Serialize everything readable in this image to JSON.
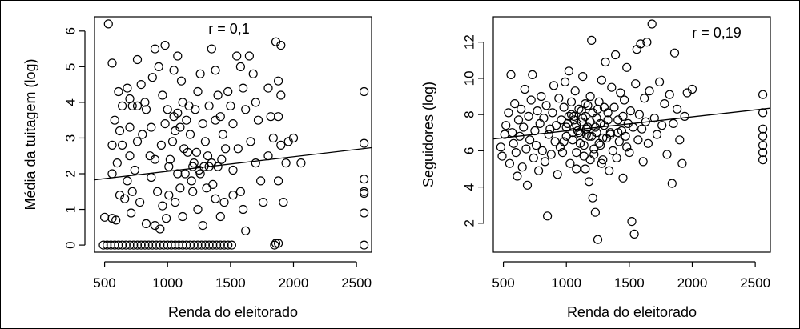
{
  "chart_data": [
    {
      "type": "scatter",
      "xlabel": "Renda do eleitorado",
      "ylabel": "Média da tuitagem (log)",
      "annotation": "r = 0,1",
      "xlim": [
        420,
        2620
      ],
      "ylim": [
        -0.2,
        6.4
      ],
      "xticks": [
        500,
        1000,
        1500,
        2000,
        2500
      ],
      "yticks": [
        0,
        1,
        2,
        3,
        4,
        5,
        6
      ],
      "regression": {
        "x": [
          420,
          2620
        ],
        "y": [
          1.83,
          2.73
        ]
      },
      "points": [
        [
          530,
          6.2
        ],
        [
          560,
          5.1
        ],
        [
          610,
          4.3
        ],
        [
          640,
          3.9
        ],
        [
          580,
          3.5
        ],
        [
          620,
          3.2
        ],
        [
          560,
          2.8
        ],
        [
          600,
          2.3
        ],
        [
          560,
          2.0
        ],
        [
          620,
          1.4
        ],
        [
          590,
          0.7
        ],
        [
          560,
          0.75
        ],
        [
          500,
          0.78
        ],
        [
          680,
          4.4
        ],
        [
          700,
          4.1
        ],
        [
          720,
          3.9
        ],
        [
          760,
          5.2
        ],
        [
          790,
          4.5
        ],
        [
          820,
          4.0
        ],
        [
          800,
          3.1
        ],
        [
          760,
          2.9
        ],
        [
          700,
          2.5
        ],
        [
          740,
          2.1
        ],
        [
          680,
          1.8
        ],
        [
          660,
          1.3
        ],
        [
          710,
          0.9
        ],
        [
          780,
          1.2
        ],
        [
          830,
          0.6
        ],
        [
          880,
          4.7
        ],
        [
          900,
          5.5
        ],
        [
          930,
          5.0
        ],
        [
          980,
          5.6
        ],
        [
          960,
          4.2
        ],
        [
          1000,
          3.8
        ],
        [
          980,
          3.4
        ],
        [
          950,
          2.8
        ],
        [
          900,
          2.4
        ],
        [
          870,
          1.9
        ],
        [
          920,
          1.5
        ],
        [
          960,
          1.1
        ],
        [
          900,
          0.55
        ],
        [
          940,
          0.45
        ],
        [
          990,
          0.75
        ],
        [
          1050,
          4.9
        ],
        [
          1080,
          5.3
        ],
        [
          1110,
          4.6
        ],
        [
          1120,
          4.0
        ],
        [
          1080,
          3.7
        ],
        [
          1060,
          3.2
        ],
        [
          1040,
          2.9
        ],
        [
          1020,
          2.4
        ],
        [
          1080,
          2.0
        ],
        [
          1100,
          1.6
        ],
        [
          1060,
          1.2
        ],
        [
          1120,
          0.8
        ],
        [
          1150,
          3.5
        ],
        [
          1180,
          3.1
        ],
        [
          1160,
          2.6
        ],
        [
          1200,
          2.2
        ],
        [
          1220,
          3.8
        ],
        [
          1240,
          4.3
        ],
        [
          1260,
          4.8
        ],
        [
          1280,
          3.4
        ],
        [
          1300,
          2.9
        ],
        [
          1320,
          2.5
        ],
        [
          1260,
          2.0
        ],
        [
          1200,
          1.5
        ],
        [
          1240,
          1.0
        ],
        [
          1280,
          0.55
        ],
        [
          1350,
          5.5
        ],
        [
          1380,
          4.9
        ],
        [
          1400,
          4.2
        ],
        [
          1420,
          3.6
        ],
        [
          1440,
          3.1
        ],
        [
          1460,
          2.7
        ],
        [
          1400,
          2.2
        ],
        [
          1360,
          1.7
        ],
        [
          1380,
          1.3
        ],
        [
          1420,
          0.8
        ],
        [
          1480,
          4.3
        ],
        [
          1500,
          3.9
        ],
        [
          1520,
          3.4
        ],
        [
          1550,
          5.3
        ],
        [
          1580,
          5.0
        ],
        [
          1600,
          4.4
        ],
        [
          1620,
          3.8
        ],
        [
          1560,
          2.7
        ],
        [
          1520,
          2.1
        ],
        [
          1580,
          1.5
        ],
        [
          1600,
          1.0
        ],
        [
          1620,
          0.4
        ],
        [
          1650,
          5.3
        ],
        [
          1680,
          4.8
        ],
        [
          1700,
          4.0
        ],
        [
          1720,
          3.5
        ],
        [
          1660,
          2.9
        ],
        [
          1700,
          2.3
        ],
        [
          1740,
          1.8
        ],
        [
          1760,
          1.2
        ],
        [
          1800,
          4.4
        ],
        [
          1820,
          3.6
        ],
        [
          1840,
          3.0
        ],
        [
          1800,
          2.5
        ],
        [
          1860,
          5.7
        ],
        [
          1900,
          5.6
        ],
        [
          1880,
          4.6
        ],
        [
          1900,
          4.2
        ],
        [
          1880,
          3.6
        ],
        [
          1900,
          2.8
        ],
        [
          1940,
          2.3
        ],
        [
          1880,
          1.8
        ],
        [
          1920,
          1.2
        ],
        [
          1960,
          2.9
        ],
        [
          2000,
          3.0
        ],
        [
          2060,
          2.3
        ],
        [
          1880,
          0.05
        ],
        [
          1860,
          0.05
        ],
        [
          1850,
          0.0
        ],
        [
          490,
          0
        ],
        [
          520,
          0
        ],
        [
          550,
          0
        ],
        [
          580,
          0
        ],
        [
          610,
          0
        ],
        [
          640,
          0
        ],
        [
          670,
          0
        ],
        [
          700,
          0
        ],
        [
          730,
          0
        ],
        [
          760,
          0
        ],
        [
          790,
          0
        ],
        [
          820,
          0
        ],
        [
          850,
          0
        ],
        [
          880,
          0
        ],
        [
          910,
          0
        ],
        [
          940,
          0
        ],
        [
          970,
          0
        ],
        [
          1000,
          0
        ],
        [
          1030,
          0
        ],
        [
          1060,
          0
        ],
        [
          1090,
          0
        ],
        [
          1120,
          0
        ],
        [
          1150,
          0
        ],
        [
          1180,
          0
        ],
        [
          1210,
          0
        ],
        [
          1240,
          0
        ],
        [
          1270,
          0
        ],
        [
          1300,
          0
        ],
        [
          1330,
          0
        ],
        [
          1360,
          0
        ],
        [
          1390,
          0
        ],
        [
          1420,
          0
        ],
        [
          1450,
          0
        ],
        [
          1480,
          0
        ],
        [
          1510,
          0
        ],
        [
          1100,
          3.3
        ],
        [
          1130,
          2.7
        ],
        [
          1170,
          3.9
        ],
        [
          1230,
          2.6
        ],
        [
          1290,
          2.2
        ],
        [
          1330,
          3.9
        ],
        [
          1350,
          2.3
        ],
        [
          1380,
          3.5
        ],
        [
          1210,
          2.3
        ],
        [
          1250,
          2.1
        ],
        [
          1140,
          2.0
        ],
        [
          1330,
          2.2
        ],
        [
          1190,
          1.8
        ],
        [
          1310,
          1.6
        ],
        [
          1430,
          2.4
        ],
        [
          1050,
          3.6
        ],
        [
          1010,
          2.2
        ],
        [
          830,
          3.8
        ],
        [
          870,
          3.3
        ],
        [
          760,
          3.9
        ],
        [
          700,
          3.3
        ],
        [
          640,
          2.8
        ],
        [
          720,
          1.5
        ],
        [
          860,
          2.5
        ],
        [
          1010,
          1.4
        ],
        [
          1450,
          1.2
        ],
        [
          1520,
          1.4
        ],
        [
          2560,
          4.3
        ],
        [
          2560,
          2.85
        ],
        [
          2560,
          1.85
        ],
        [
          2560,
          1.5
        ],
        [
          2560,
          1.45
        ],
        [
          2560,
          0.9
        ],
        [
          2560,
          0.0
        ]
      ]
    },
    {
      "type": "scatter",
      "xlabel": "Renda do eleitorado",
      "ylabel": "Seguidores (log)",
      "annotation": "r = 0,19",
      "xlim": [
        420,
        2620
      ],
      "ylim": [
        0.4,
        13.4
      ],
      "xticks": [
        500,
        1000,
        1500,
        2000,
        2500
      ],
      "yticks": [
        2,
        4,
        6,
        8,
        10,
        12
      ],
      "regression": {
        "x": [
          420,
          2620
        ],
        "y": [
          6.65,
          8.35
        ]
      },
      "points": [
        [
          480,
          6.2
        ],
        [
          490,
          5.7
        ],
        [
          510,
          6.9
        ],
        [
          520,
          7.4
        ],
        [
          540,
          8.1
        ],
        [
          550,
          5.3
        ],
        [
          560,
          10.2
        ],
        [
          570,
          7.0
        ],
        [
          580,
          6.4
        ],
        [
          590,
          8.6
        ],
        [
          600,
          5.9
        ],
        [
          610,
          4.6
        ],
        [
          620,
          7.7
        ],
        [
          630,
          6.8
        ],
        [
          640,
          8.3
        ],
        [
          650,
          5.1
        ],
        [
          660,
          7.3
        ],
        [
          670,
          9.4
        ],
        [
          680,
          6.1
        ],
        [
          690,
          4.1
        ],
        [
          700,
          7.9
        ],
        [
          710,
          6.6
        ],
        [
          720,
          8.8
        ],
        [
          730,
          10.2
        ],
        [
          740,
          5.6
        ],
        [
          750,
          7.1
        ],
        [
          760,
          6.3
        ],
        [
          770,
          8.2
        ],
        [
          780,
          4.9
        ],
        [
          790,
          7.5
        ],
        [
          800,
          9.0
        ],
        [
          810,
          6.0
        ],
        [
          820,
          7.8
        ],
        [
          830,
          5.4
        ],
        [
          840,
          8.5
        ],
        [
          850,
          2.4
        ],
        [
          860,
          6.9
        ],
        [
          870,
          7.2
        ],
        [
          880,
          5.8
        ],
        [
          890,
          8.1
        ],
        [
          900,
          9.6
        ],
        [
          910,
          6.5
        ],
        [
          920,
          7.4
        ],
        [
          930,
          4.7
        ],
        [
          940,
          8.9
        ],
        [
          950,
          6.2
        ],
        [
          960,
          7.7
        ],
        [
          970,
          5.9
        ],
        [
          980,
          8.4
        ],
        [
          990,
          9.8
        ],
        [
          1000,
          6.8
        ],
        [
          1010,
          7.5
        ],
        [
          1020,
          10.4
        ],
        [
          1030,
          5.3
        ],
        [
          1040,
          8.0
        ],
        [
          1050,
          6.6
        ],
        [
          1060,
          7.9
        ],
        [
          1070,
          9.3
        ],
        [
          1080,
          5.0
        ],
        [
          1090,
          7.1
        ],
        [
          1100,
          8.3
        ],
        [
          1110,
          6.4
        ],
        [
          1120,
          7.6
        ],
        [
          1130,
          10.1
        ],
        [
          1140,
          5.7
        ],
        [
          1150,
          8.6
        ],
        [
          1160,
          6.9
        ],
        [
          1170,
          7.3
        ],
        [
          1180,
          4.3
        ],
        [
          1190,
          9.0
        ],
        [
          1200,
          12.1
        ],
        [
          1210,
          3.4
        ],
        [
          1220,
          6.1
        ],
        [
          1230,
          2.6
        ],
        [
          1240,
          7.8
        ],
        [
          1250,
          1.1
        ],
        [
          1260,
          8.7
        ],
        [
          1270,
          6.3
        ],
        [
          1280,
          9.9
        ],
        [
          1290,
          5.5
        ],
        [
          1300,
          7.4
        ],
        [
          1310,
          10.9
        ],
        [
          1320,
          6.7
        ],
        [
          1330,
          8.1
        ],
        [
          1340,
          4.9
        ],
        [
          1350,
          7.0
        ],
        [
          1360,
          9.5
        ],
        [
          1370,
          6.0
        ],
        [
          1380,
          8.4
        ],
        [
          1390,
          11.3
        ],
        [
          1400,
          5.6
        ],
        [
          1410,
          7.7
        ],
        [
          1420,
          6.5
        ],
        [
          1430,
          9.2
        ],
        [
          1440,
          7.1
        ],
        [
          1450,
          4.5
        ],
        [
          1460,
          8.8
        ],
        [
          1470,
          6.8
        ],
        [
          1480,
          10.6
        ],
        [
          1490,
          7.5
        ],
        [
          1500,
          5.9
        ],
        [
          1510,
          8.2
        ],
        [
          1520,
          2.1
        ],
        [
          1530,
          7.3
        ],
        [
          1540,
          1.4
        ],
        [
          1550,
          9.7
        ],
        [
          1560,
          11.6
        ],
        [
          1570,
          6.6
        ],
        [
          1580,
          8.0
        ],
        [
          1590,
          11.9
        ],
        [
          1600,
          7.2
        ],
        [
          1610,
          5.4
        ],
        [
          1620,
          8.9
        ],
        [
          1630,
          7.6
        ],
        [
          1640,
          12.0
        ],
        [
          1650,
          6.4
        ],
        [
          1660,
          9.3
        ],
        [
          1680,
          13.0
        ],
        [
          1700,
          7.8
        ],
        [
          1720,
          6.9
        ],
        [
          1740,
          9.8
        ],
        [
          1760,
          7.4
        ],
        [
          1780,
          8.6
        ],
        [
          1800,
          5.8
        ],
        [
          1820,
          9.1
        ],
        [
          1840,
          4.2
        ],
        [
          1850,
          7.5
        ],
        [
          1860,
          11.4
        ],
        [
          1880,
          8.3
        ],
        [
          1900,
          6.6
        ],
        [
          1920,
          5.3
        ],
        [
          1940,
          7.9
        ],
        [
          1960,
          9.2
        ],
        [
          2000,
          9.4
        ],
        [
          1050,
          7.0
        ],
        [
          1080,
          7.4
        ],
        [
          1110,
          6.9
        ],
        [
          1130,
          7.8
        ],
        [
          1160,
          7.2
        ],
        [
          1190,
          7.6
        ],
        [
          1210,
          8.1
        ],
        [
          1240,
          7.0
        ],
        [
          1270,
          7.5
        ],
        [
          1290,
          6.7
        ],
        [
          1150,
          7.9
        ],
        [
          1180,
          6.8
        ],
        [
          1120,
          8.2
        ],
        [
          1060,
          7.7
        ],
        [
          1230,
          7.3
        ],
        [
          1330,
          7.7
        ],
        [
          1260,
          6.4
        ],
        [
          1140,
          6.3
        ],
        [
          1200,
          6.8
        ],
        [
          1020,
          7.9
        ],
        [
          980,
          6.5
        ],
        [
          1300,
          8.4
        ],
        [
          1350,
          6.9
        ],
        [
          1100,
          7.0
        ],
        [
          1170,
          8.5
        ],
        [
          1250,
          8.3
        ],
        [
          1220,
          5.8
        ],
        [
          1000,
          7.3
        ],
        [
          1080,
          5.9
        ],
        [
          1190,
          5.5
        ],
        [
          1410,
          7.0
        ],
        [
          1450,
          7.9
        ],
        [
          1480,
          6.2
        ],
        [
          1040,
          8.7
        ],
        [
          1280,
          5.3
        ],
        [
          1150,
          5.0
        ],
        [
          2560,
          9.1
        ],
        [
          2560,
          8.1
        ],
        [
          2560,
          7.2
        ],
        [
          2560,
          6.8
        ],
        [
          2560,
          6.3
        ],
        [
          2560,
          5.9
        ],
        [
          2560,
          5.5
        ]
      ]
    }
  ]
}
